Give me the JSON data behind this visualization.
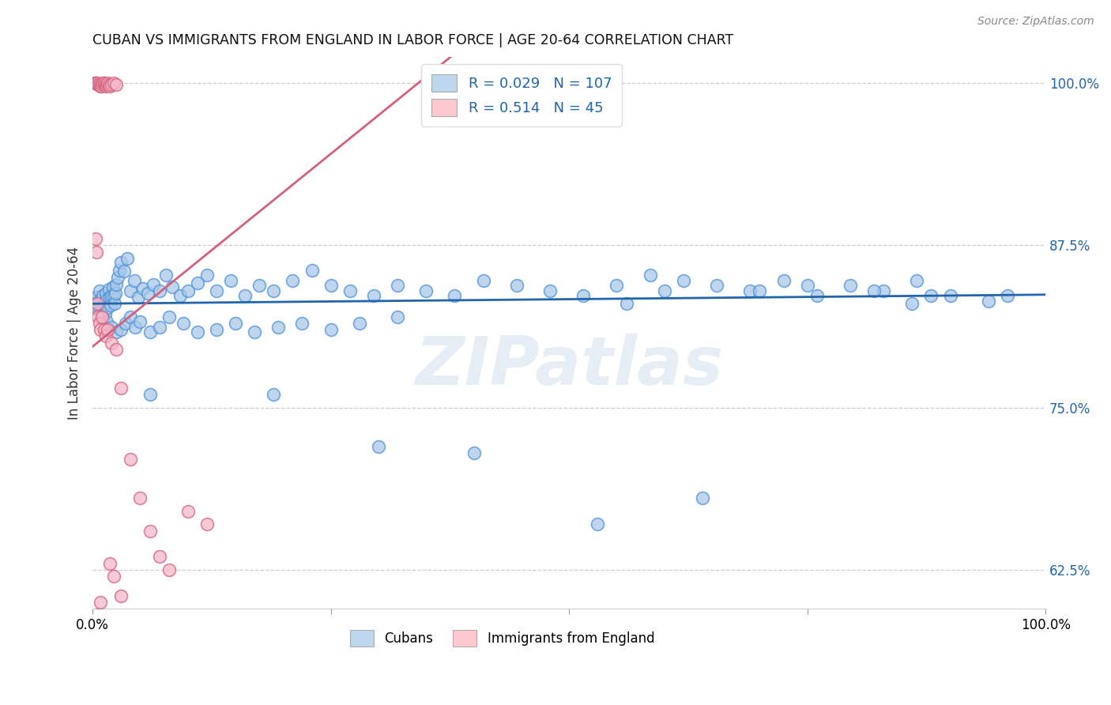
{
  "title": "CUBAN VS IMMIGRANTS FROM ENGLAND IN LABOR FORCE | AGE 20-64 CORRELATION CHART",
  "source": "Source: ZipAtlas.com",
  "ylabel": "In Labor Force | Age 20-64",
  "legend_label1": "Cubans",
  "legend_label2": "Immigrants from England",
  "R1": 0.029,
  "N1": 107,
  "R2": 0.514,
  "N2": 45,
  "xmin": 0.0,
  "xmax": 1.0,
  "ymin": 0.595,
  "ymax": 1.02,
  "yticks": [
    0.625,
    0.75,
    0.875,
    1.0
  ],
  "ytick_labels": [
    "62.5%",
    "75.0%",
    "87.5%",
    "100.0%"
  ],
  "color_blue_fill": "#a8c8e8",
  "color_blue_edge": "#4a90d9",
  "color_blue_line": "#2166ac",
  "color_pink_fill": "#f4b8cb",
  "color_pink_edge": "#d4607a",
  "color_pink_line": "#d4607a",
  "color_blue_legend_fill": "#bdd7ee",
  "color_pink_legend_fill": "#ffc7ce",
  "background_color": "#ffffff",
  "grid_color": "#cccccc",
  "watermark": "ZIPatlas",
  "blue_x": [
    0.002,
    0.003,
    0.004,
    0.005,
    0.006,
    0.007,
    0.008,
    0.009,
    0.01,
    0.011,
    0.012,
    0.013,
    0.014,
    0.015,
    0.016,
    0.017,
    0.018,
    0.019,
    0.02,
    0.021,
    0.022,
    0.023,
    0.024,
    0.025,
    0.026,
    0.028,
    0.03,
    0.033,
    0.036,
    0.04,
    0.044,
    0.048,
    0.053,
    0.058,
    0.064,
    0.07,
    0.077,
    0.084,
    0.092,
    0.1,
    0.11,
    0.12,
    0.13,
    0.145,
    0.16,
    0.175,
    0.19,
    0.21,
    0.23,
    0.25,
    0.27,
    0.295,
    0.32,
    0.35,
    0.38,
    0.41,
    0.445,
    0.48,
    0.515,
    0.55,
    0.585,
    0.62,
    0.655,
    0.69,
    0.725,
    0.76,
    0.795,
    0.83,
    0.865,
    0.9,
    0.01,
    0.015,
    0.02,
    0.025,
    0.03,
    0.035,
    0.04,
    0.045,
    0.05,
    0.06,
    0.07,
    0.08,
    0.095,
    0.11,
    0.13,
    0.15,
    0.17,
    0.195,
    0.22,
    0.25,
    0.28,
    0.32,
    0.06,
    0.19,
    0.53,
    0.64,
    0.86,
    0.88,
    0.94,
    0.96,
    0.3,
    0.4,
    0.56,
    0.6,
    0.7,
    0.75,
    0.82
  ],
  "blue_y": [
    0.832,
    0.828,
    0.835,
    0.831,
    0.826,
    0.84,
    0.825,
    0.833,
    0.828,
    0.836,
    0.83,
    0.822,
    0.838,
    0.833,
    0.827,
    0.841,
    0.835,
    0.829,
    0.836,
    0.843,
    0.836,
    0.83,
    0.838,
    0.845,
    0.85,
    0.856,
    0.862,
    0.855,
    0.865,
    0.84,
    0.848,
    0.835,
    0.842,
    0.838,
    0.845,
    0.84,
    0.852,
    0.843,
    0.836,
    0.84,
    0.846,
    0.852,
    0.84,
    0.848,
    0.836,
    0.844,
    0.84,
    0.848,
    0.856,
    0.844,
    0.84,
    0.836,
    0.844,
    0.84,
    0.836,
    0.848,
    0.844,
    0.84,
    0.836,
    0.844,
    0.852,
    0.848,
    0.844,
    0.84,
    0.848,
    0.836,
    0.844,
    0.84,
    0.848,
    0.836,
    0.82,
    0.816,
    0.812,
    0.808,
    0.81,
    0.815,
    0.82,
    0.812,
    0.816,
    0.808,
    0.812,
    0.82,
    0.815,
    0.808,
    0.81,
    0.815,
    0.808,
    0.812,
    0.815,
    0.81,
    0.815,
    0.82,
    0.76,
    0.76,
    0.66,
    0.68,
    0.83,
    0.836,
    0.832,
    0.836,
    0.72,
    0.715,
    0.83,
    0.84,
    0.84,
    0.844,
    0.84
  ],
  "pink_x": [
    0.002,
    0.003,
    0.004,
    0.005,
    0.006,
    0.007,
    0.008,
    0.009,
    0.01,
    0.011,
    0.012,
    0.013,
    0.014,
    0.015,
    0.016,
    0.017,
    0.018,
    0.02,
    0.022,
    0.025,
    0.003,
    0.004,
    0.005,
    0.006,
    0.007,
    0.008,
    0.01,
    0.012,
    0.014,
    0.016,
    0.02,
    0.025,
    0.03,
    0.04,
    0.05,
    0.06,
    0.07,
    0.08,
    0.1,
    0.12,
    0.018,
    0.022,
    0.03,
    0.005,
    0.008
  ],
  "pink_y": [
    1.0,
    1.0,
    1.0,
    1.0,
    0.999,
    0.999,
    0.998,
    0.998,
    0.999,
    1.0,
    1.0,
    0.999,
    0.998,
    0.999,
    1.0,
    0.999,
    0.998,
    0.999,
    1.0,
    0.999,
    0.88,
    0.87,
    0.83,
    0.82,
    0.815,
    0.81,
    0.82,
    0.81,
    0.805,
    0.81,
    0.8,
    0.795,
    0.765,
    0.71,
    0.68,
    0.655,
    0.635,
    0.625,
    0.67,
    0.66,
    0.63,
    0.62,
    0.605,
    0.59,
    0.6
  ]
}
